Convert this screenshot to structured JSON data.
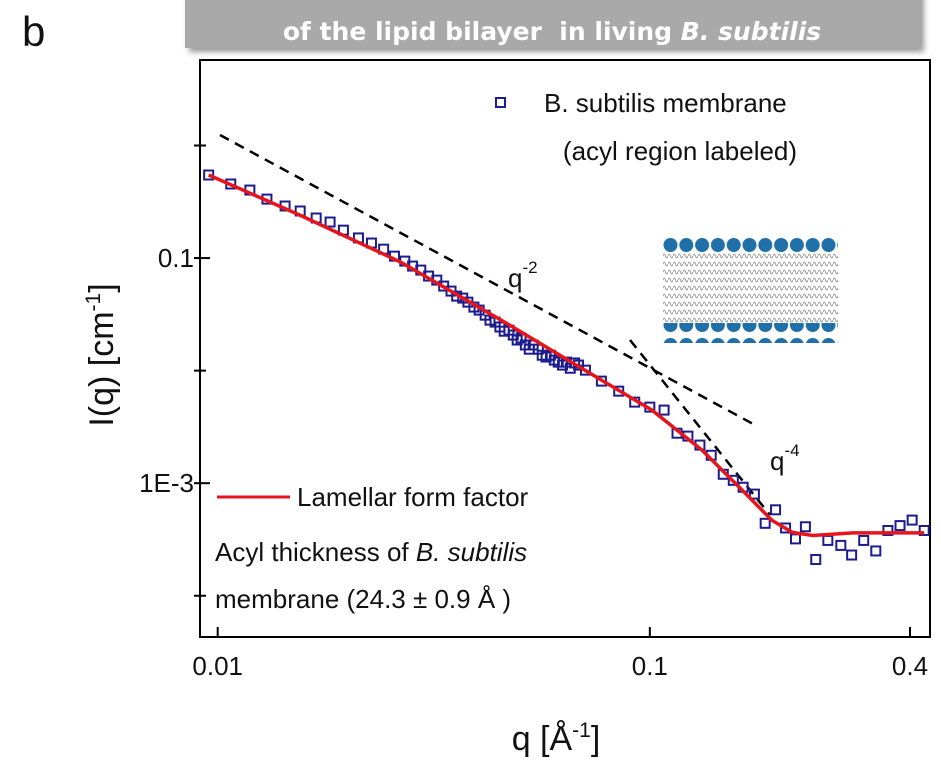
{
  "panel_label": "b",
  "chart_data": {
    "type": "scatter",
    "title": [
      "of the lipid bilayer  in living",
      "B. subtilis"
    ],
    "xlabel": [
      "q [Å",
      "-1",
      "]"
    ],
    "ylabel": [
      "I(q) [cm",
      "-1",
      "]"
    ],
    "xscale": "log",
    "yscale": "log",
    "xlim": [
      0.0091,
      0.445
    ],
    "ylim": [
      4.3e-05,
      5.75
    ],
    "xticks": [
      0.01,
      0.1,
      0.4
    ],
    "yticks": [
      0.1,
      {
        "value": 0.001,
        "label": "1E-3"
      }
    ],
    "minor_yticks": [
      1,
      0.01,
      0.0001
    ],
    "power_law_labels": [
      [
        "q",
        "-2"
      ],
      [
        "q",
        "-4"
      ]
    ],
    "legend_note": "(acyl region labeled)",
    "annotation": [
      "Acyl thickness of ",
      "B. subtilis",
      "membrane (24.3 ± 0.9 Å )"
    ],
    "series": [
      {
        "name": "B. subtilis membrane",
        "type": "scatter",
        "color": "#1c1c8f",
        "x": [
          0.00953,
          0.01072,
          0.01187,
          0.013,
          0.01432,
          0.01552,
          0.0169,
          0.0182,
          0.01954,
          0.02117,
          0.02269,
          0.02421,
          0.02565,
          0.0271,
          0.02825,
          0.02951,
          0.03076,
          0.03214,
          0.03334,
          0.03467,
          0.03573,
          0.0369,
          0.03793,
          0.03917,
          0.04027,
          0.04159,
          0.04266,
          0.04385,
          0.04498,
          0.04603,
          0.04721,
          0.04831,
          0.04932,
          0.05035,
          0.05152,
          0.0526,
          0.0537,
          0.05521,
          0.05636,
          0.05754,
          0.05888,
          0.06012,
          0.06138,
          0.06281,
          0.06412,
          0.06546,
          0.06699,
          0.06839,
          0.07096,
          0.07727,
          0.08472,
          0.09226,
          0.1,
          0.1079,
          0.1156,
          0.1225,
          0.1306,
          0.1387,
          0.1479,
          0.156,
          0.1644,
          0.1746,
          0.1849,
          0.1954,
          0.2061,
          0.2173,
          0.2291,
          0.2421,
          0.2582,
          0.2767,
          0.2931,
          0.3126,
          0.3334,
          0.3556,
          0.3793,
          0.4046,
          0.4315
        ],
        "values": [
          0.547,
          0.455,
          0.402,
          0.334,
          0.29,
          0.262,
          0.227,
          0.209,
          0.177,
          0.151,
          0.136,
          0.12,
          0.104,
          0.094,
          0.0849,
          0.0782,
          0.0692,
          0.0637,
          0.0564,
          0.0509,
          0.0459,
          0.0441,
          0.0406,
          0.0367,
          0.0345,
          0.0311,
          0.0281,
          0.027,
          0.0244,
          0.0224,
          0.0229,
          0.0207,
          0.0187,
          0.0195,
          0.0169,
          0.0155,
          0.0169,
          0.0155,
          0.0137,
          0.0132,
          0.0137,
          0.0124,
          0.0119,
          0.0112,
          0.0119,
          0.0105,
          0.0117,
          0.0112,
          0.0101,
          0.00807,
          0.00657,
          0.00525,
          0.00474,
          0.00446,
          0.00278,
          0.00262,
          0.00218,
          0.00177,
          0.0012,
          0.00106,
          0.00092,
          0.0008,
          0.00044,
          0.00058,
          0.0004,
          0.00032,
          0.00041,
          0.00021,
          0.00031,
          0.00028,
          0.00023,
          0.00031,
          0.00025,
          0.00038,
          0.00042,
          0.00047,
          0.00038
        ]
      },
      {
        "name": "Lamellar form factor",
        "type": "line",
        "color": "#e8141b",
        "x": [
          0.00953,
          0.0155,
          0.02649,
          0.0453,
          0.0773,
          0.1011,
          0.132,
          0.1637,
          0.1915,
          0.2135,
          0.238,
          0.2952,
          0.4315
        ],
        "values": [
          0.547,
          0.241,
          0.0922,
          0.0281,
          0.00824,
          0.00446,
          0.00197,
          0.000866,
          0.000469,
          0.000366,
          0.000343,
          0.000362,
          0.000362
        ]
      }
    ]
  }
}
